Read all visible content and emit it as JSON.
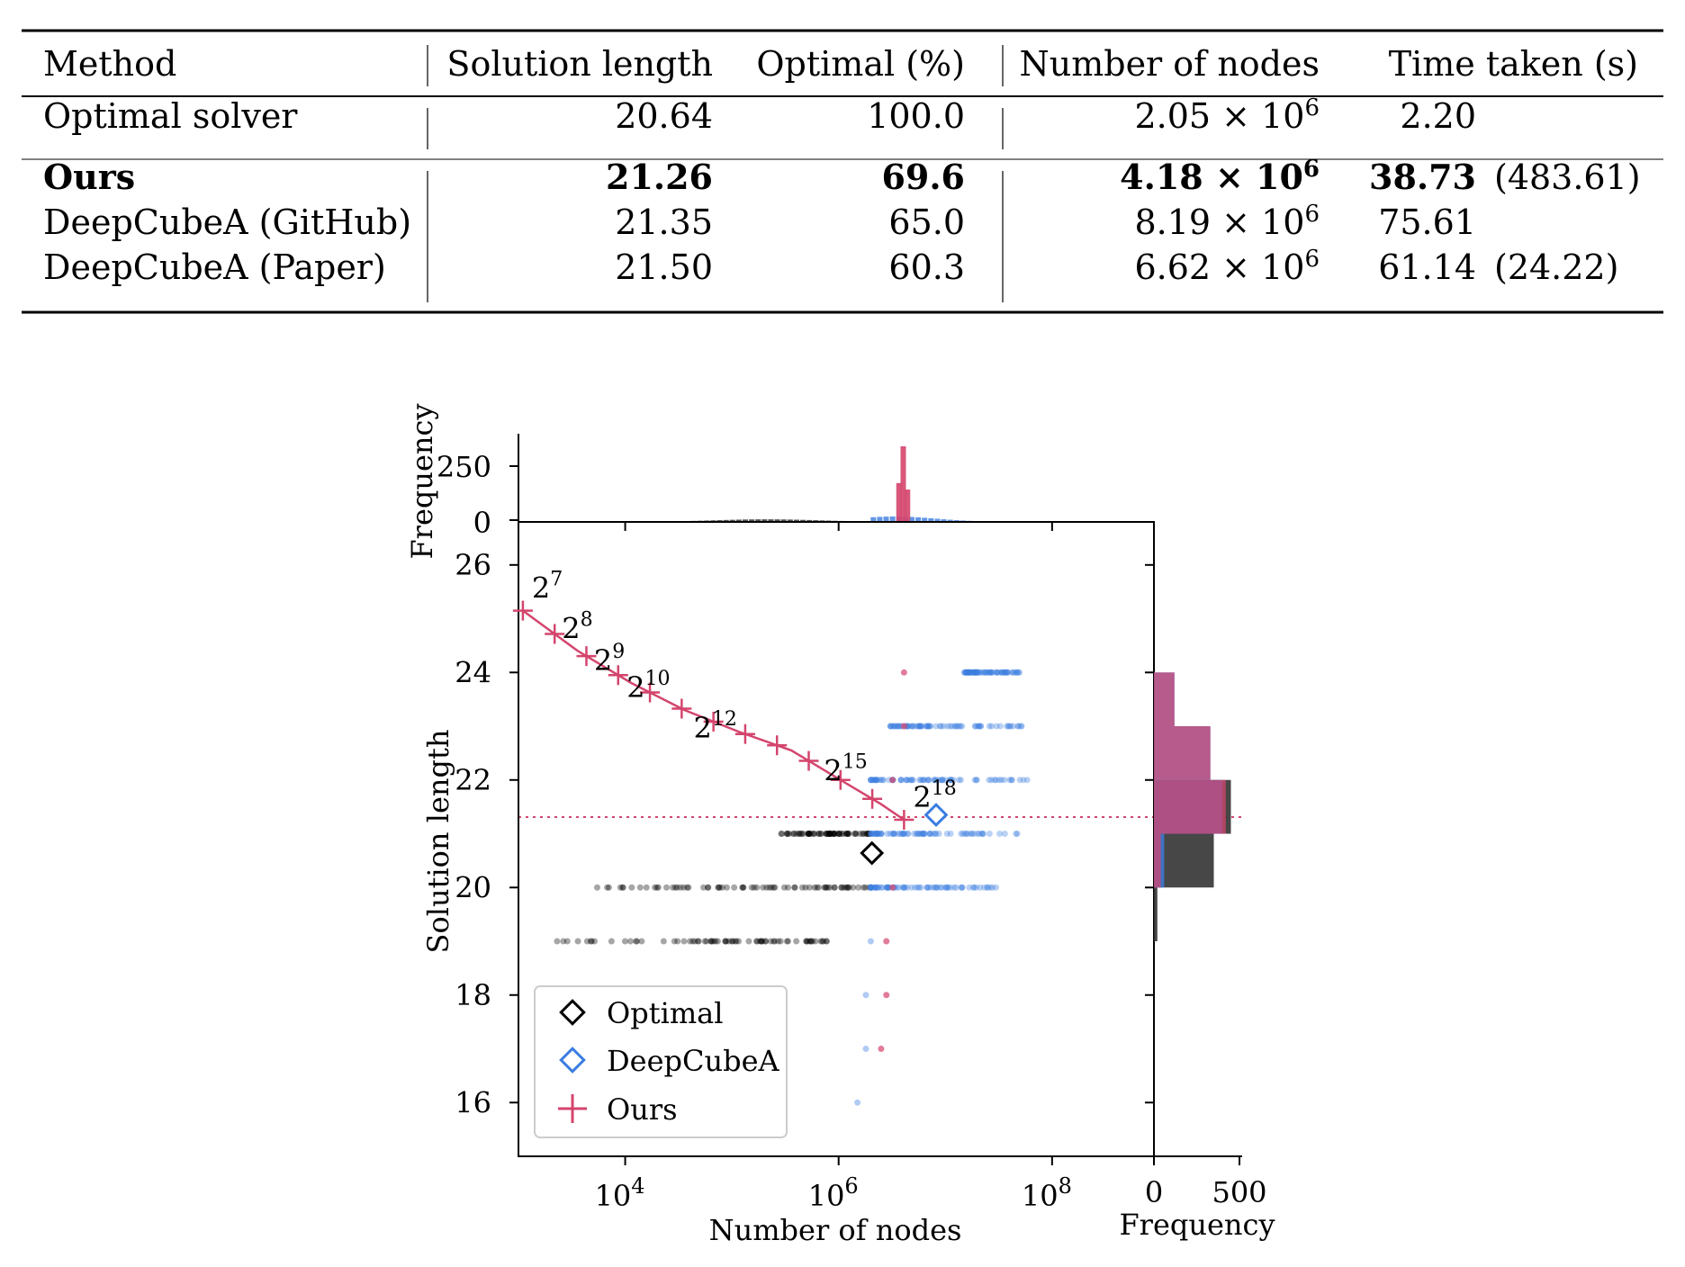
{
  "table": {
    "headers": [
      "Method",
      "Solution length",
      "Optimal (%)",
      "Number of nodes",
      "Time taken (s)"
    ],
    "rows": [
      {
        "method": "Optimal solver",
        "length": "20.64",
        "optimal": "100.0",
        "nodes_mant": "2.05",
        "nodes_exp": "6",
        "time": "2.20",
        "time_extra": "",
        "bold": false
      },
      {
        "method": "Ours",
        "length": "21.26",
        "optimal": "69.6",
        "nodes_mant": "4.18",
        "nodes_exp": "6",
        "time": "38.73",
        "time_extra": "(483.61)",
        "bold": true
      },
      {
        "method": "DeepCubeA (GitHub)",
        "length": "21.35",
        "optimal": "65.0",
        "nodes_mant": "8.19",
        "nodes_exp": "6",
        "time": "75.61",
        "time_extra": "",
        "bold": false
      },
      {
        "method": "DeepCubeA (Paper)",
        "length": "21.50",
        "optimal": "60.3",
        "nodes_mant": "6.62",
        "nodes_exp": "6",
        "time": "61.14",
        "time_extra": "(24.22)",
        "bold": false
      }
    ]
  },
  "figure": {
    "colors": {
      "optimal": "#000000",
      "deepcubea": "#3b7de0",
      "ours": "#d4456d"
    },
    "legend": [
      "Optimal",
      "DeepCubeA",
      "Ours"
    ],
    "main_xlabel": "Number of nodes",
    "main_ylabel": "Solution length",
    "top_ylabel": "Frequency",
    "right_xlabel": "Frequency",
    "x_ticks": [
      {
        "exp": "4",
        "base": "10"
      },
      {
        "exp": "6",
        "base": "10"
      },
      {
        "exp": "8",
        "base": "10"
      }
    ],
    "y_ticks": [
      "16",
      "18",
      "20",
      "22",
      "24",
      "26"
    ],
    "top_y_ticks": [
      "0",
      "250"
    ],
    "right_x_ticks": [
      "0",
      "500"
    ]
  },
  "chart_data": {
    "type": "scatter",
    "xscale": "log",
    "xlabel": "Number of nodes",
    "ylabel": "Solution length",
    "ylim": [
      15,
      26.8
    ],
    "xlim": [
      1000,
      900000000
    ],
    "legend_position": "lower-left",
    "reference_line": {
      "y": 21.26,
      "style": "dotted"
    },
    "series": [
      {
        "name": "Ours",
        "type": "line",
        "x": [
          1100,
          3600,
          11500,
          36000,
          115000,
          360000,
          1150000,
          2500000,
          4100000
        ],
        "y": [
          25.15,
          24.4,
          23.8,
          23.3,
          22.9,
          22.55,
          21.95,
          21.55,
          21.26
        ],
        "labels": [
          "7",
          "8",
          "9",
          "10",
          "",
          "12",
          "",
          "",
          "15",
          "",
          "",
          "18"
        ],
        "label_points": [
          {
            "base": "2",
            "exp": "7",
            "x": 1100,
            "y": 25.15
          },
          {
            "base": "2",
            "exp": "8",
            "x": 2100,
            "y": 24.4
          },
          {
            "base": "2",
            "exp": "9",
            "x": 4200,
            "y": 23.8
          },
          {
            "base": "2",
            "exp": "10",
            "x": 8500,
            "y": 23.3
          },
          {
            "base": "2",
            "exp": "12",
            "x": 36000,
            "y": 22.55
          },
          {
            "base": "2",
            "exp": "15",
            "x": 600000,
            "y": 21.75
          },
          {
            "base": "2",
            "exp": "18",
            "x": 4100000,
            "y": 21.26
          }
        ]
      },
      {
        "name": "Optimal",
        "type": "marker",
        "x": [
          2050000
        ],
        "y": [
          20.64
        ]
      },
      {
        "name": "DeepCubeA",
        "type": "marker",
        "x": [
          8190000
        ],
        "y": [
          21.35
        ]
      }
    ],
    "scatter_bands": [
      {
        "series": "Optimal",
        "y": 21,
        "x_from": 200000,
        "x_to": 2000000
      },
      {
        "series": "Optimal",
        "y": 20,
        "x_from": 5000,
        "x_to": 2000000
      },
      {
        "series": "Optimal",
        "y": 19,
        "x_from": 1200,
        "x_to": 800000
      },
      {
        "series": "DeepCubeA",
        "y": 23,
        "x_from": 3000000,
        "x_to": 60000000
      },
      {
        "series": "DeepCubeA",
        "y": 22,
        "x_from": 2000000,
        "x_to": 60000000
      },
      {
        "series": "DeepCubeA",
        "y": 21,
        "x_from": 2000000,
        "x_to": 60000000
      },
      {
        "series": "DeepCubeA",
        "y": 20,
        "x_from": 2000000,
        "x_to": 30000000
      },
      {
        "series": "DeepCubeA",
        "y": 24,
        "x_from": 15000000,
        "x_to": 50000000
      }
    ],
    "top_histogram": {
      "ylim": [
        0,
        400
      ],
      "peak": {
        "series": "Ours",
        "x": 4100000,
        "count": 350
      }
    },
    "right_histogram": {
      "xlim": [
        0,
        500
      ],
      "bins_y": [
        19,
        20,
        21,
        22,
        23
      ],
      "Optimal": [
        20,
        350,
        450,
        0,
        0
      ],
      "DeepCubeA": [
        0,
        60,
        400,
        330,
        120
      ],
      "Ours": [
        0,
        40,
        420,
        330,
        120
      ]
    }
  }
}
